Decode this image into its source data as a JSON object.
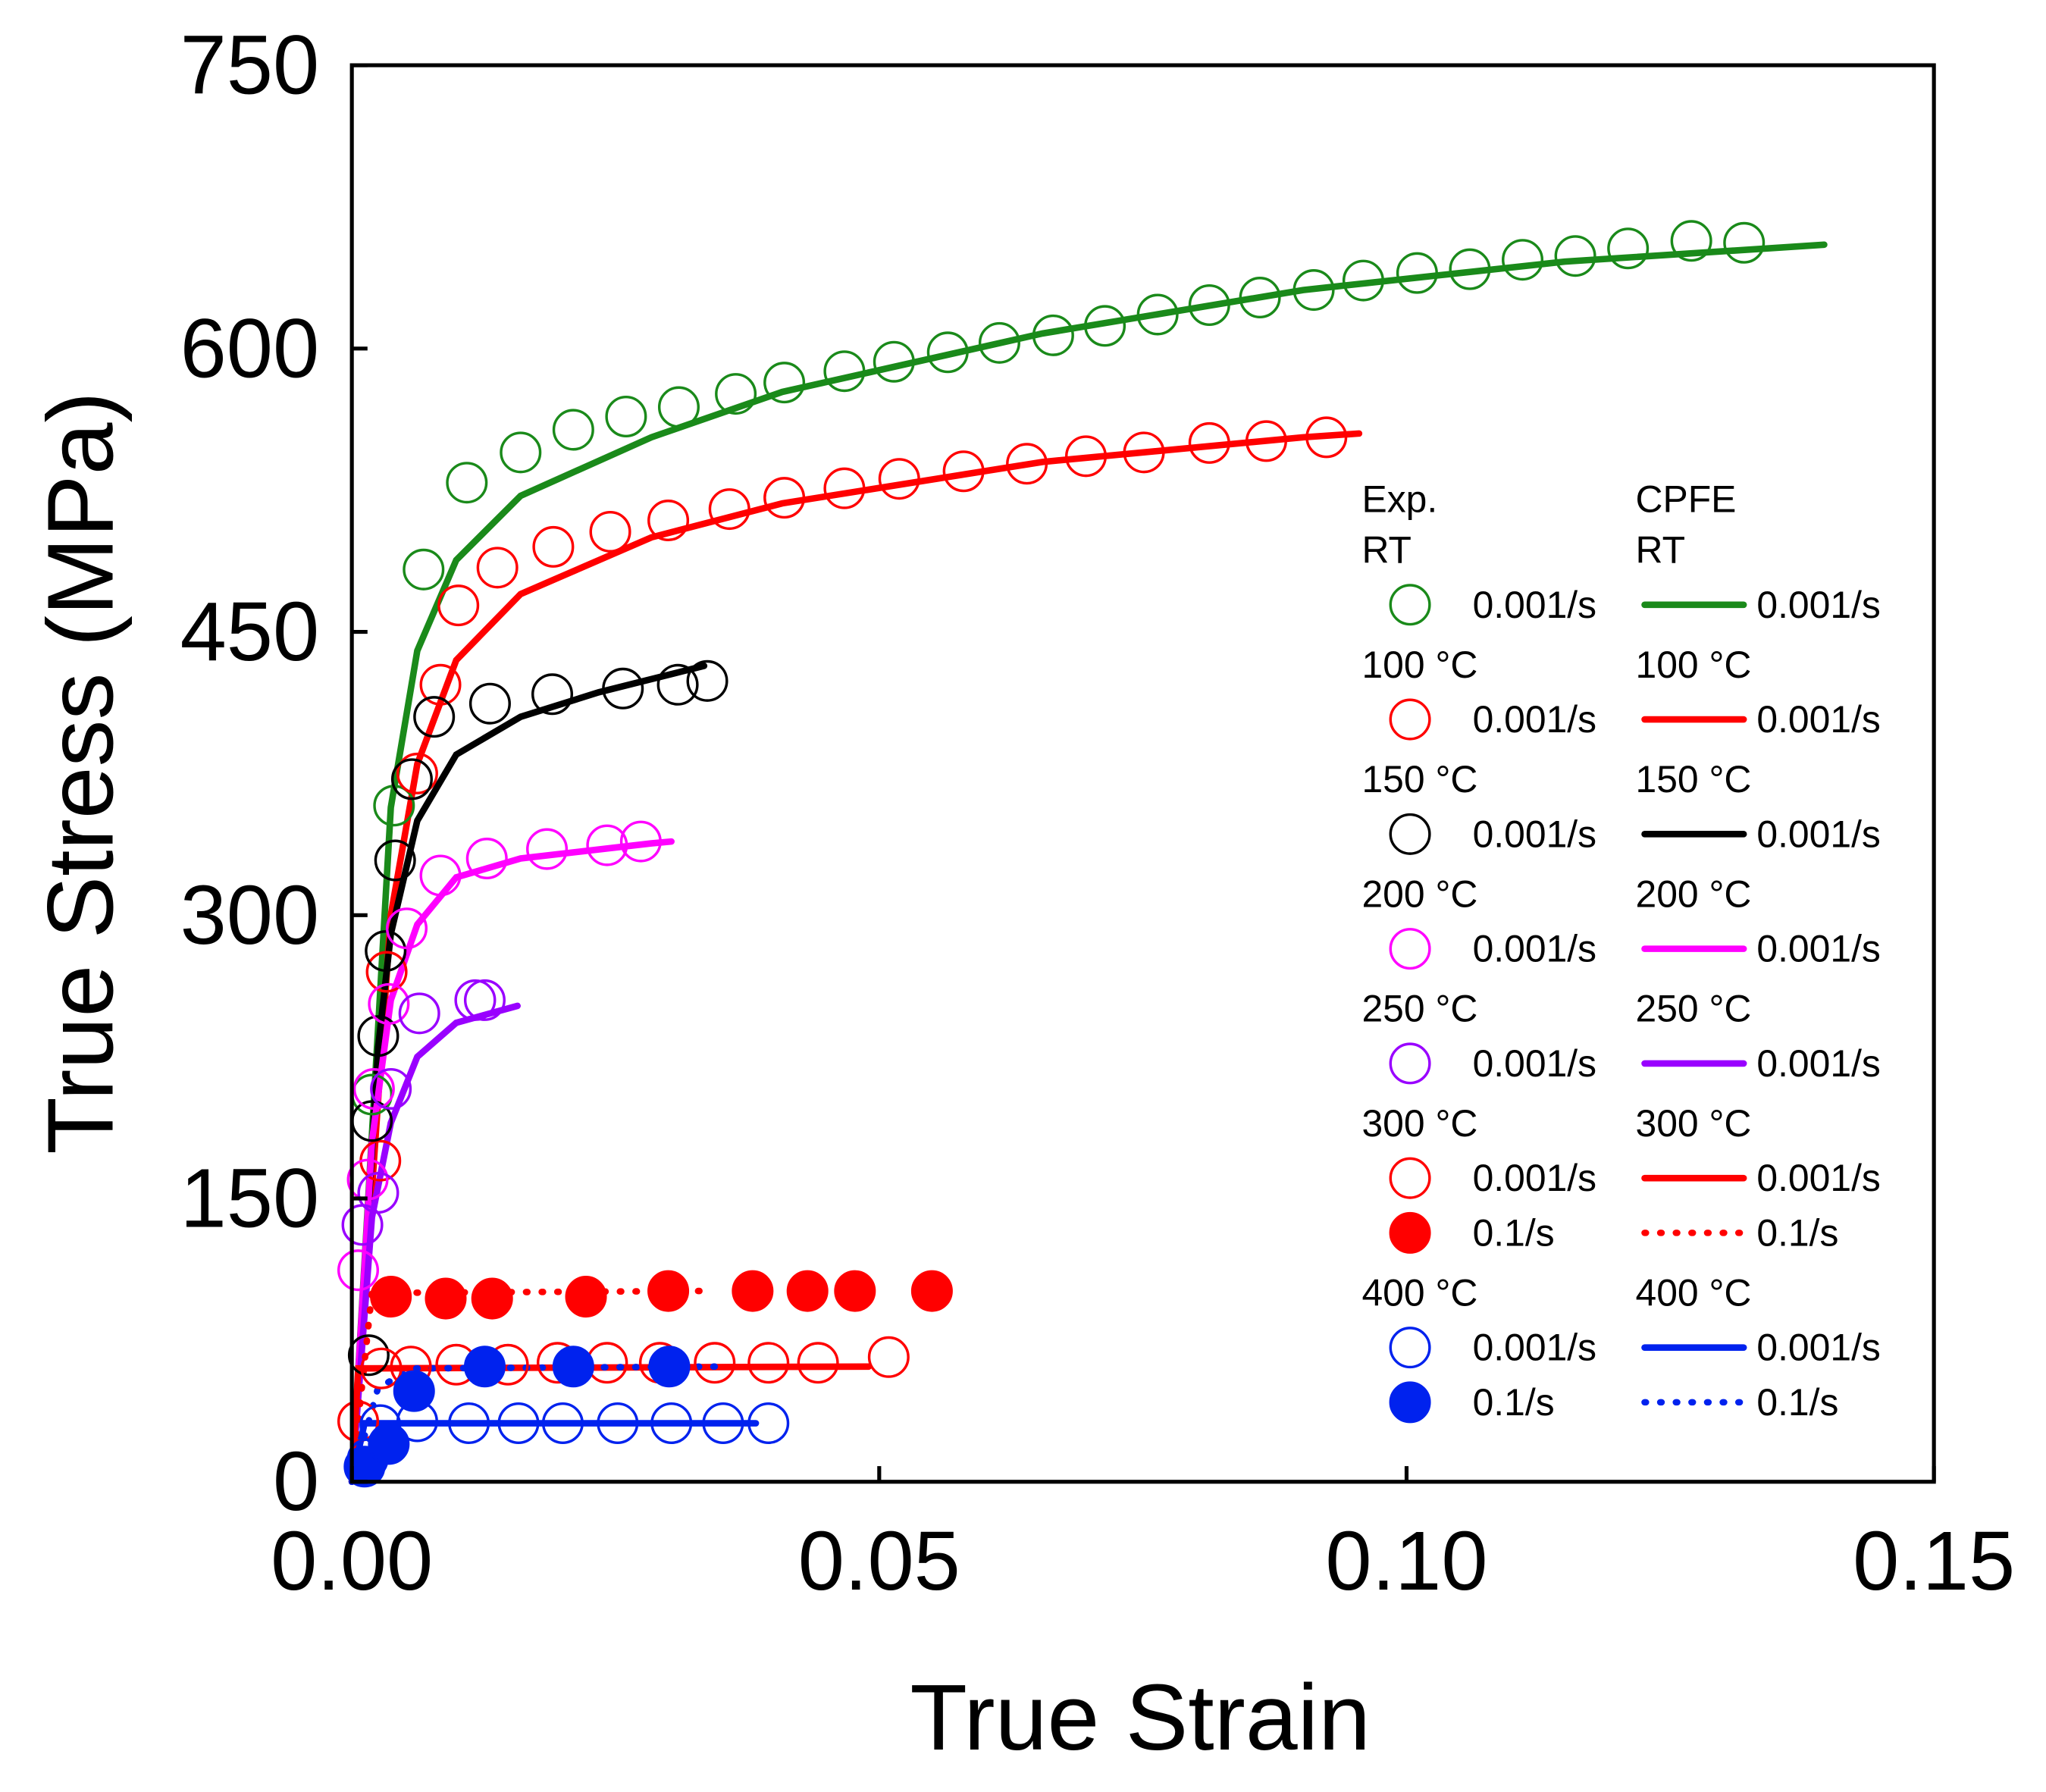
{
  "chart_data": {
    "type": "line",
    "xlabel": "True Strain",
    "ylabel": "True Stress (MPa)",
    "xlim": [
      0,
      0.15
    ],
    "xticks": [
      {
        "value": 0,
        "label": "0.00"
      },
      {
        "value": 0.05,
        "label": "0.05"
      },
      {
        "value": 0.1,
        "label": "0.10"
      },
      {
        "value": 0.15,
        "label": "0.15"
      }
    ],
    "ylim": [
      0,
      750
    ],
    "yticks": [
      0,
      150,
      300,
      450,
      600,
      750
    ],
    "legend_headers": [
      "Exp.",
      "CPFE"
    ],
    "groups": [
      {
        "label": "RT",
        "series": [
          {
            "name": "0.001/s",
            "kind": "exp",
            "color": "#1a8a1a",
            "marker": "open",
            "x": [
              0.0019,
              0.004,
              0.0068,
              0.0109,
              0.016,
              0.021,
              0.026,
              0.031,
              0.0364,
              0.041,
              0.0467,
              0.0514,
              0.0565,
              0.0614,
              0.0665,
              0.0714,
              0.0764,
              0.0813,
              0.0861,
              0.0912,
              0.0959,
              0.101,
              0.106,
              0.111,
              0.116,
              0.121,
              0.127,
              0.132
            ],
            "y": [
              205,
              358,
              483,
              529,
              545,
              557,
              564,
              569,
              576,
              582,
              588,
              593,
              598,
              603,
              607,
              612,
              618,
              623,
              627,
              631,
              636,
              640,
              642,
              647,
              649,
              653,
              657,
              656
            ]
          },
          {
            "name": "0.001/s",
            "kind": "model",
            "color": "#1a8a1a",
            "dash": "solid",
            "x": [
              0,
              0.0037,
              0.0062,
              0.0099,
              0.016,
              0.0284,
              0.0408,
              0.0655,
              0.0902,
              0.115,
              0.1396
            ],
            "y": [
              0,
              357,
              440,
              488,
              522,
              553,
              577,
              608,
              631,
              646,
              655
            ]
          }
        ]
      },
      {
        "label": "100 °C",
        "series": [
          {
            "name": "0.001/s",
            "kind": "exp",
            "color": "#ff0000",
            "marker": "open",
            "x": [
              0.0027,
              0.0033,
              0.0062,
              0.0084,
              0.0101,
              0.0138,
              0.0191,
              0.0245,
              0.03,
              0.0358,
              0.041,
              0.0467,
              0.0519,
              0.058,
              0.064,
              0.0696,
              0.0751,
              0.0813,
              0.0867,
              0.0924
            ],
            "y": [
              170,
              270,
              375,
              422,
              464,
              484,
              495,
              503,
              509,
              515,
              521,
              526,
              531,
              535,
              539,
              543,
              545,
              550,
              551,
              553
            ]
          },
          {
            "name": "0.001/s",
            "kind": "model",
            "color": "#ff0000",
            "dash": "solid",
            "x": [
              0,
              0.0037,
              0.0062,
              0.0099,
              0.016,
              0.0284,
              0.0408,
              0.0655,
              0.0902,
              0.0955
            ],
            "y": [
              0,
              300,
              380,
              435,
              470,
              500,
              518,
              540,
              553,
              555
            ]
          }
        ]
      },
      {
        "label": "150 °C",
        "series": [
          {
            "name": "0.001/s",
            "kind": "exp",
            "color": "#000000",
            "marker": "open",
            "x": [
              0.0016,
              0.0019,
              0.0025,
              0.0032,
              0.0041,
              0.0057,
              0.0078,
              0.0131,
              0.019,
              0.0257,
              0.0309,
              0.0337
            ],
            "y": [
              67,
              191,
              236,
              281,
              329,
              372,
              405,
              412,
              417,
              420,
              422,
              424
            ]
          },
          {
            "name": "0.001/s",
            "kind": "model",
            "color": "#000000",
            "dash": "solid",
            "x": [
              0,
              0.0025,
              0.0037,
              0.0062,
              0.0099,
              0.016,
              0.0234,
              0.0334
            ],
            "y": [
              0,
              230,
              290,
              350,
              385,
              405,
              418,
              432
            ]
          }
        ]
      },
      {
        "label": "200 °C",
        "series": [
          {
            "name": "0.001/s",
            "kind": "exp",
            "color": "#ff00ff",
            "marker": "open",
            "x": [
              0.0006,
              0.0015,
              0.0021,
              0.0035,
              0.0052,
              0.0084,
              0.0128,
              0.0185,
              0.0242,
              0.0274
            ],
            "y": [
              112,
              160,
              208,
              253,
              293,
              321,
              330,
              335,
              337,
              339
            ]
          },
          {
            "name": "0.001/s",
            "kind": "model",
            "color": "#ff00ff",
            "dash": "solid",
            "x": [
              0,
              0.0019,
              0.0037,
              0.0062,
              0.0099,
              0.016,
              0.0284,
              0.0303
            ],
            "y": [
              0,
              180,
              255,
              295,
              320,
              330,
              338,
              339
            ]
          }
        ]
      },
      {
        "label": "250 °C",
        "series": [
          {
            "name": "0.001/s",
            "kind": "exp",
            "color": "#9900ff",
            "marker": "open",
            "x": [
              0.001,
              0.0025,
              0.0037,
              0.0064,
              0.0117,
              0.0126
            ],
            "y": [
              136,
              153,
              208,
              248,
              255,
              255
            ]
          },
          {
            "name": "0.001/s",
            "kind": "model",
            "color": "#9900ff",
            "dash": "solid",
            "x": [
              0,
              0.0019,
              0.0037,
              0.0062,
              0.0099,
              0.0157
            ],
            "y": [
              0,
              140,
              190,
              225,
              243,
              252
            ]
          }
        ]
      },
      {
        "label": "300 °C",
        "series": [
          {
            "name": "0.001/s",
            "kind": "exp",
            "color": "#ff0000",
            "marker": "open",
            "x": [
              0.0006,
              0.0028,
              0.0056,
              0.0099,
              0.0148,
              0.0195,
              0.0242,
              0.0292,
              0.0344,
              0.0395,
              0.0442,
              0.0509
            ],
            "y": [
              32,
              60,
              61,
              62,
              62,
              63,
              63,
              63,
              63,
              63,
              63,
              66
            ]
          },
          {
            "name": "0.1/s",
            "kind": "exp",
            "color": "#ff0000",
            "marker": "filled",
            "x": [
              0.0037,
              0.0089,
              0.0133,
              0.0222,
              0.03,
              0.038,
              0.0432,
              0.0477,
              0.055
            ],
            "y": [
              98,
              97,
              97,
              98,
              101,
              101,
              101,
              101,
              101
            ]
          },
          {
            "name": "0.001/s",
            "kind": "model",
            "color": "#ff0000",
            "dash": "solid",
            "x": [
              0,
              0.0006,
              0.049
            ],
            "y": [
              0,
              60,
              61
            ]
          },
          {
            "name": "0.1/s",
            "kind": "model",
            "color": "#ff0000",
            "dash": "dotted",
            "x": [
              0,
              0.0019,
              0.0334
            ],
            "y": [
              0,
              100,
              101
            ]
          }
        ]
      },
      {
        "label": "400 °C",
        "series": [
          {
            "name": "0.001/s",
            "kind": "exp",
            "color": "#0022ee",
            "marker": "open",
            "x": [
              0.0015,
              0.0027,
              0.0062,
              0.0111,
              0.0158,
              0.02,
              0.0252,
              0.0303,
              0.0352,
              0.0395
            ],
            "y": [
              12,
              30,
              32,
              31,
              31,
              31,
              31,
              31,
              31,
              31
            ]
          },
          {
            "name": "0.1/s",
            "kind": "exp",
            "color": "#0022ee",
            "marker": "filled",
            "x": [
              0.0012,
              0.0035,
              0.0059,
              0.0126,
              0.021,
              0.0301
            ],
            "y": [
              8,
              20,
              48,
              61,
              61,
              61
            ]
          },
          {
            "name": "0.001/s",
            "kind": "model",
            "color": "#0022ee",
            "dash": "solid",
            "x": [
              0,
              0.0012,
              0.0383
            ],
            "y": [
              0,
              31,
              31
            ]
          },
          {
            "name": "0.1/s",
            "kind": "model",
            "color": "#0022ee",
            "dash": "dotted",
            "x": [
              0,
              0.0025,
              0.006,
              0.0346
            ],
            "y": [
              0,
              50,
              60,
              61
            ]
          }
        ]
      }
    ]
  }
}
